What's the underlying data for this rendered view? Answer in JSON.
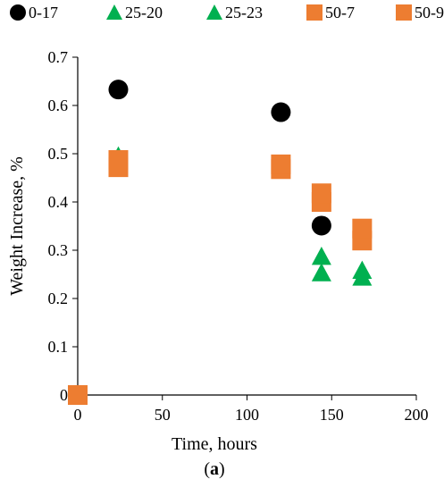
{
  "chart_data": {
    "type": "scatter",
    "xlabel": "Time, hours",
    "ylabel": "Weight Increase, %",
    "xlim": [
      0,
      200
    ],
    "ylim": [
      0,
      0.7
    ],
    "x_ticks": [
      "0",
      "50",
      "100",
      "150",
      "200"
    ],
    "y_ticks": [
      "0",
      "0.1",
      "0.2",
      "0.3",
      "0.4",
      "0.5",
      "0.6",
      "0.7"
    ],
    "grid": false,
    "legend_position": "top",
    "panel_label": {
      "open": "(",
      "letter": "a",
      "close": ")"
    },
    "series": [
      {
        "name": "0-17",
        "marker": "circle",
        "color": "#000000",
        "points": [
          [
            0,
            0
          ],
          [
            24,
            0.633
          ],
          [
            120,
            0.586
          ],
          [
            144,
            0.351
          ]
        ]
      },
      {
        "name": "25-20",
        "marker": "triangle",
        "color": "#00b050",
        "points": [
          [
            0,
            0
          ],
          [
            24,
            0.495
          ],
          [
            144,
            0.253
          ],
          [
            168,
            0.244
          ]
        ]
      },
      {
        "name": "25-23",
        "marker": "triangle",
        "color": "#00b050",
        "points": [
          [
            0,
            0
          ],
          [
            24,
            0.49
          ],
          [
            144,
            0.287
          ],
          [
            168,
            0.258
          ]
        ]
      },
      {
        "name": "50-7",
        "marker": "square",
        "color": "#ed7d31",
        "points": [
          [
            0,
            0
          ],
          [
            24,
            0.472
          ],
          [
            120,
            0.468
          ],
          [
            144,
            0.4
          ],
          [
            168,
            0.32
          ]
        ]
      },
      {
        "name": "50-9",
        "marker": "square",
        "color": "#ed7d31",
        "points": [
          [
            0,
            0
          ],
          [
            24,
            0.487
          ],
          [
            120,
            0.478
          ],
          [
            144,
            0.418
          ],
          [
            168,
            0.345
          ]
        ]
      }
    ]
  }
}
